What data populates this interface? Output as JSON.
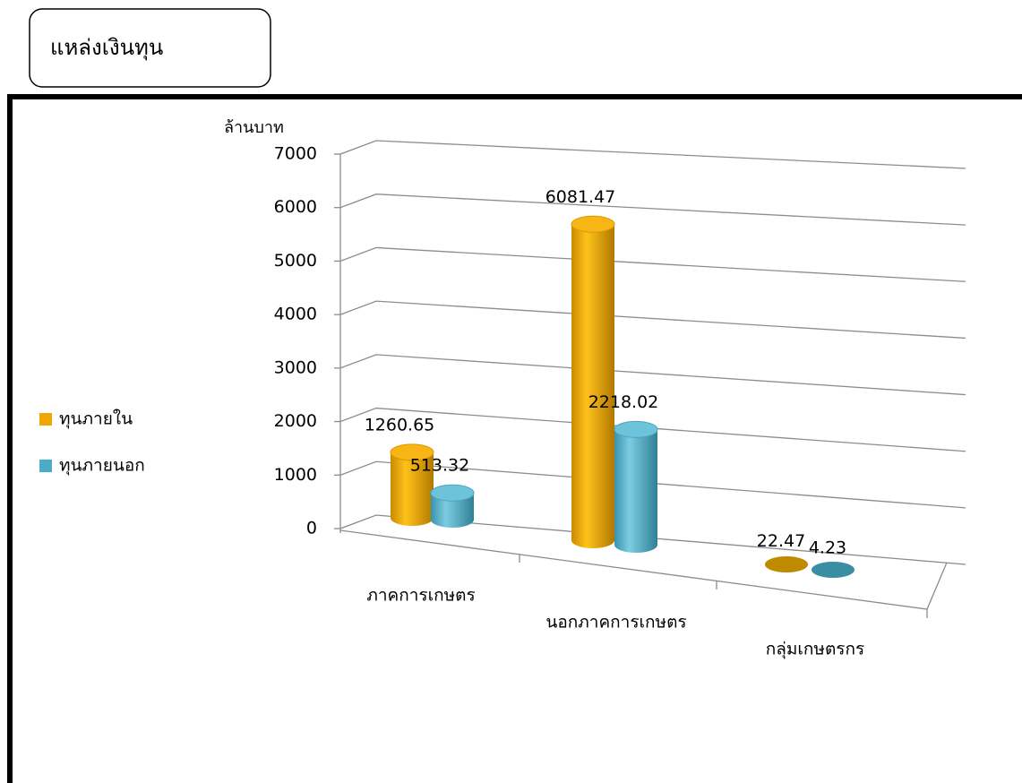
{
  "header": {
    "title": "แหล่งเงินทุน"
  },
  "chart_data": {
    "type": "bar3d",
    "y_label": "ล้านบาท",
    "categories": [
      "ภาคการเกษตร",
      "นอกภาคการเกษตร",
      "กลุ่มเกษตรกร"
    ],
    "series": [
      {
        "name": "ทุนภายใน",
        "color": "#f0a800",
        "values": [
          1260.65,
          6081.47,
          22.47
        ]
      },
      {
        "name": "ทุนภายนอก",
        "color": "#4bacc6",
        "values": [
          513.32,
          2218.02,
          4.23
        ]
      }
    ],
    "ylim": [
      0,
      7000
    ],
    "yticks": [
      0,
      1000,
      2000,
      3000,
      4000,
      5000,
      6000,
      7000
    ],
    "grid": true,
    "legend": "left"
  }
}
